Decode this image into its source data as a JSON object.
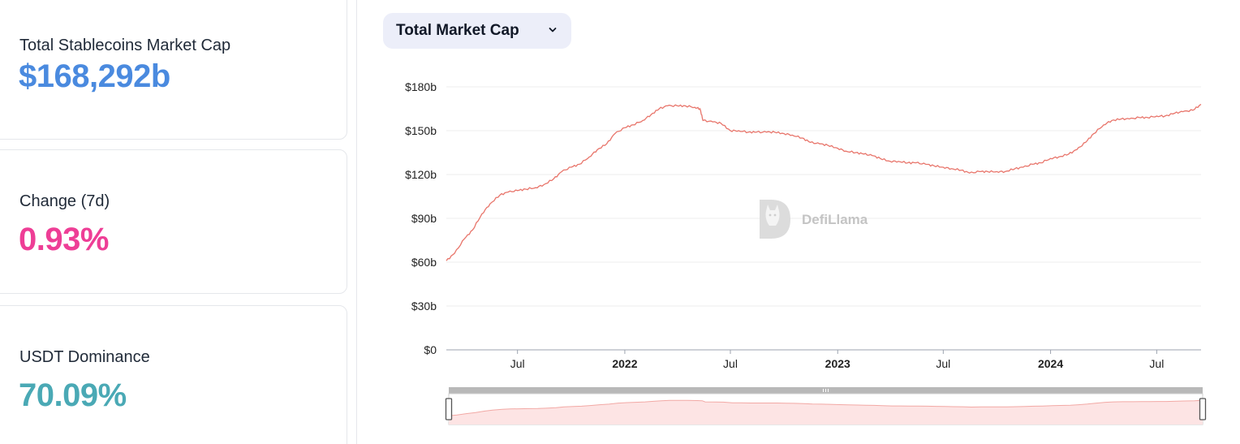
{
  "stats": [
    {
      "label": "Total Stablecoins Market Cap",
      "value": "$168,292b",
      "color": "#4a8adf"
    },
    {
      "label": "Change (7d)",
      "value": "0.93%",
      "color": "#ee3e96"
    },
    {
      "label": "USDT Dominance",
      "value": "70.09%",
      "color": "#4aa9b5"
    }
  ],
  "dropdown": {
    "label": "Total Market Cap"
  },
  "watermark": {
    "text": "DefiLlama",
    "icon": "llama-logo-icon"
  },
  "line_color": "#e8756b",
  "area_color": "#fde4e4",
  "chart_data": {
    "type": "line",
    "title": "",
    "xlabel": "",
    "ylabel": "",
    "ylim": [
      0,
      180
    ],
    "y_ticks": [
      "$0",
      "$30b",
      "$60b",
      "$90b",
      "$120b",
      "$150b",
      "$180b"
    ],
    "y_tick_values": [
      0,
      30,
      60,
      90,
      120,
      150,
      180
    ],
    "x_ticks": [
      {
        "label": "Jul",
        "date": "2021-07-01",
        "bold": false
      },
      {
        "label": "2022",
        "date": "2022-01-01",
        "bold": true
      },
      {
        "label": "Jul",
        "date": "2022-07-01",
        "bold": false
      },
      {
        "label": "2023",
        "date": "2023-01-01",
        "bold": true
      },
      {
        "label": "Jul",
        "date": "2023-07-01",
        "bold": false
      },
      {
        "label": "2024",
        "date": "2024-01-01",
        "bold": true
      },
      {
        "label": "Jul",
        "date": "2024-07-01",
        "bold": false
      }
    ],
    "xlim": [
      "2021-03-01",
      "2024-09-15"
    ],
    "grid": true,
    "series": [
      {
        "x": [
          "2021-03-01",
          "2021-03-15",
          "2021-04-01",
          "2021-04-15",
          "2021-05-01",
          "2021-05-15",
          "2021-06-01",
          "2021-06-15",
          "2021-07-01",
          "2021-07-15",
          "2021-08-01",
          "2021-08-15",
          "2021-09-01",
          "2021-09-15",
          "2021-10-01",
          "2021-10-15",
          "2021-11-01",
          "2021-11-15",
          "2021-12-01",
          "2021-12-15",
          "2022-01-01",
          "2022-01-15",
          "2022-02-01",
          "2022-02-15",
          "2022-03-01",
          "2022-03-15",
          "2022-04-01",
          "2022-04-15",
          "2022-05-01",
          "2022-05-10",
          "2022-05-15",
          "2022-06-01",
          "2022-06-15",
          "2022-07-01",
          "2022-07-15",
          "2022-08-01",
          "2022-08-15",
          "2022-09-01",
          "2022-09-15",
          "2022-10-01",
          "2022-10-15",
          "2022-11-01",
          "2022-11-15",
          "2022-12-01",
          "2022-12-15",
          "2023-01-01",
          "2023-01-15",
          "2023-02-01",
          "2023-02-15",
          "2023-03-01",
          "2023-03-15",
          "2023-04-01",
          "2023-04-15",
          "2023-05-01",
          "2023-05-15",
          "2023-06-01",
          "2023-06-15",
          "2023-07-01",
          "2023-07-15",
          "2023-08-01",
          "2023-08-15",
          "2023-09-01",
          "2023-09-15",
          "2023-10-01",
          "2023-10-15",
          "2023-11-01",
          "2023-11-15",
          "2023-12-01",
          "2023-12-15",
          "2024-01-01",
          "2024-01-15",
          "2024-02-01",
          "2024-02-15",
          "2024-03-01",
          "2024-03-15",
          "2024-04-01",
          "2024-04-15",
          "2024-05-01",
          "2024-05-15",
          "2024-06-01",
          "2024-06-15",
          "2024-07-01",
          "2024-07-15",
          "2024-08-01",
          "2024-08-15",
          "2024-09-01",
          "2024-09-15"
        ],
        "values": [
          61,
          66,
          76,
          82,
          93,
          100,
          106,
          108,
          109,
          110,
          111,
          113,
          117,
          122,
          125,
          127,
          132,
          137,
          141,
          148,
          152,
          154,
          157,
          161,
          165,
          167,
          167,
          167,
          166,
          165,
          157,
          156,
          155,
          150,
          150,
          149,
          149,
          149,
          149,
          148,
          147,
          145,
          142,
          141,
          140,
          138,
          136,
          135,
          134,
          133,
          131,
          129,
          129,
          128,
          128,
          127,
          126,
          125,
          124,
          123,
          121,
          122,
          122,
          122,
          122,
          124,
          125,
          127,
          128,
          131,
          132,
          134,
          137,
          142,
          148,
          154,
          157,
          158,
          158,
          159,
          159,
          160,
          160,
          162,
          163,
          164,
          168
        ]
      }
    ]
  }
}
